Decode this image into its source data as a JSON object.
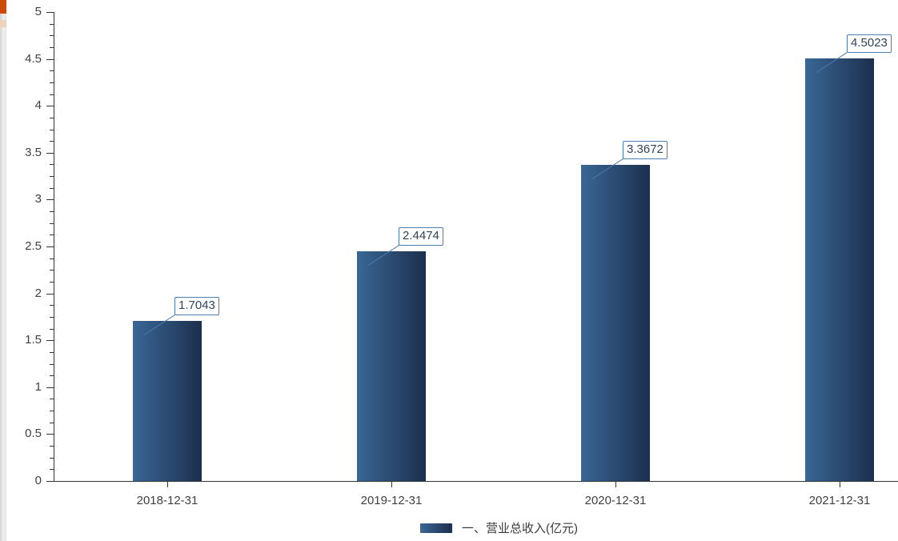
{
  "chart_data": {
    "type": "bar",
    "categories": [
      "2018-12-31",
      "2019-12-31",
      "2020-12-31",
      "2021-12-31"
    ],
    "values": [
      1.7043,
      2.4474,
      3.3672,
      4.5023
    ],
    "value_labels": [
      "1.7043",
      "2.4474",
      "3.3672",
      "4.5023"
    ],
    "title": "",
    "xlabel": "",
    "ylabel": "",
    "ylim": [
      0,
      5
    ],
    "y_major_step": 0.5,
    "y_minor_per_major": 4,
    "y_tick_labels": [
      "0",
      "0.5",
      "1",
      "1.5",
      "2",
      "2.5",
      "3",
      "3.5",
      "4",
      "4.5",
      "5"
    ],
    "grid": false,
    "legend": "一、营业总收入(亿元)",
    "legend_position": "bottom-center",
    "colors": {
      "bar_gradient_left": "#3a6795",
      "bar_gradient_right": "#1c2f4e",
      "axis_line": "#333333",
      "axis_text": "#404040",
      "value_label_text": "#2f4459",
      "value_label_border": "#4d7cb0",
      "leader_line": "#4d7cb0",
      "legend_text": "#3a3a3a"
    }
  },
  "left_strip": {
    "thumb_color": "#cc4b07",
    "mark_color": "#eed2bd",
    "track_color": "#ebebeb"
  }
}
